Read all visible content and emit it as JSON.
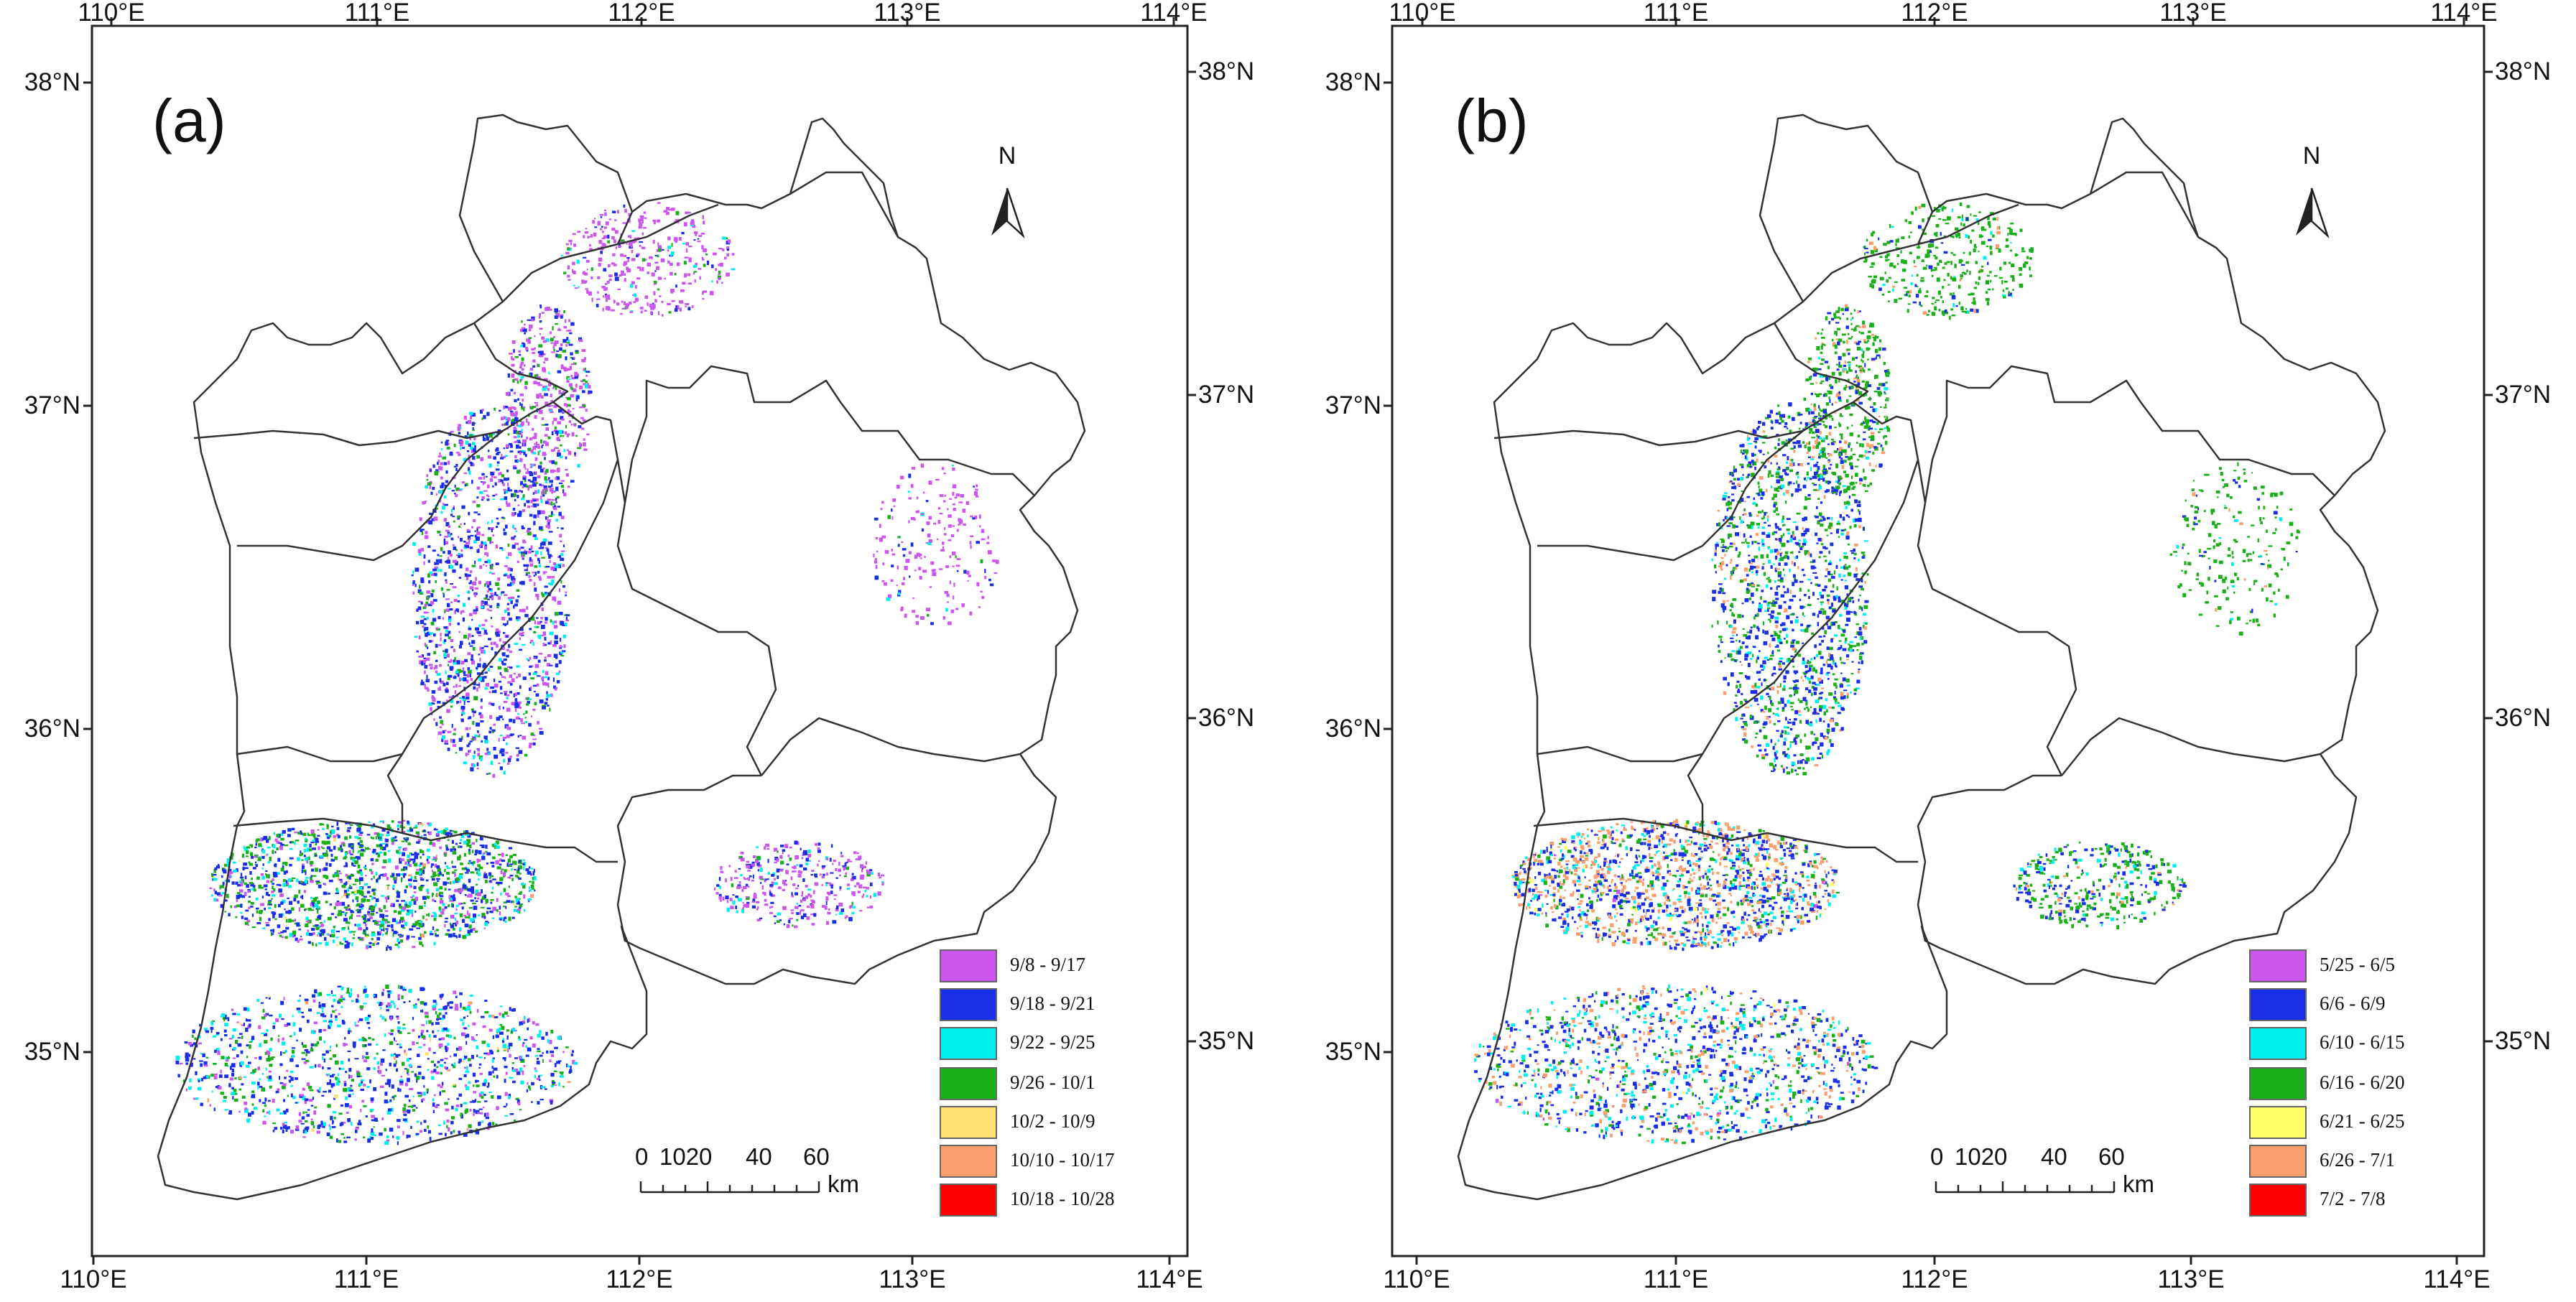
{
  "axes": {
    "lon_labels": [
      "110°E",
      "111°E",
      "112°E",
      "113°E",
      "114°E"
    ],
    "lat_labels_left": [
      "38°N",
      "37°N",
      "36°N",
      "35°N"
    ],
    "lat_labels_right": [
      "38°N",
      "37°N",
      "36°N",
      "35°N"
    ]
  },
  "north_label": "N",
  "scalebar": {
    "labels": [
      "0",
      "1020",
      "40",
      "60"
    ],
    "unit": "km"
  },
  "panels": [
    {
      "label": "(a)",
      "legend": [
        {
          "text": "9/8 - 9/17",
          "color": "#cc55ee"
        },
        {
          "text": "9/18 - 9/21",
          "color": "#1a2ee8"
        },
        {
          "text": "9/22 - 9/25",
          "color": "#00f0f0"
        },
        {
          "text": "9/26 - 10/1",
          "color": "#19b019"
        },
        {
          "text": "10/2 - 10/9",
          "color": "#ffdf6f"
        },
        {
          "text": "10/10 - 10/17",
          "color": "#fa9e6e"
        },
        {
          "text": "10/18 - 10/28",
          "color": "#ff0000"
        }
      ]
    },
    {
      "label": "(b)",
      "legend": [
        {
          "text": "5/25 - 6/5",
          "color": "#cc55ee"
        },
        {
          "text": "6/6 - 6/9",
          "color": "#1a2ee8"
        },
        {
          "text": "6/10 - 6/15",
          "color": "#00f0f0"
        },
        {
          "text": "6/16 - 6/20",
          "color": "#19b019"
        },
        {
          "text": "6/21 - 6/25",
          "color": "#ffff66"
        },
        {
          "text": "6/26 - 7/1",
          "color": "#fa9e6e"
        },
        {
          "text": "7/2 - 7/8",
          "color": "#ff0000"
        }
      ]
    }
  ]
}
